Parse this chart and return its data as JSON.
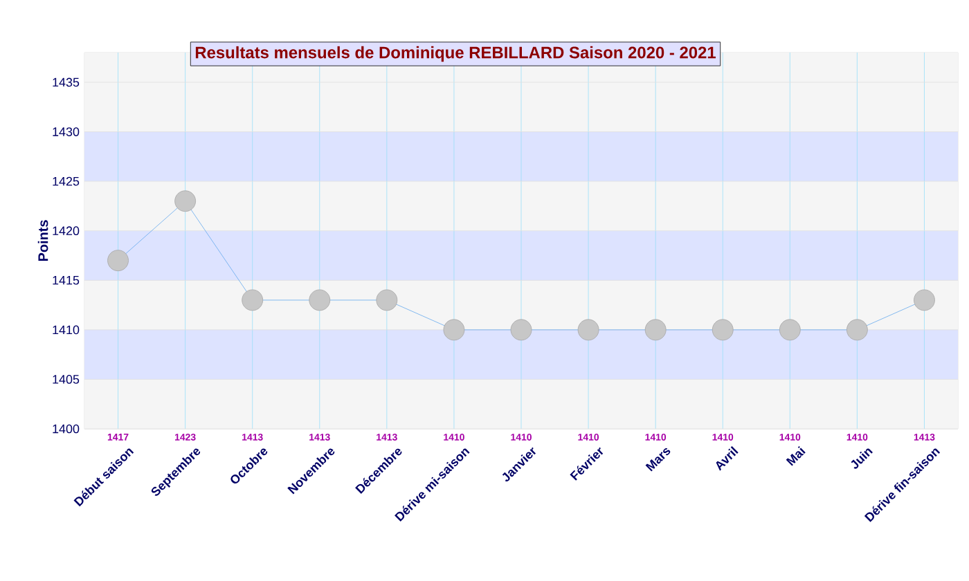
{
  "chart_data": {
    "type": "line",
    "title": "Resultats mensuels de Dominique REBILLARD Saison 2020 - 2021",
    "ylabel": "Points",
    "categories": [
      "Début saison",
      "Septembre",
      "Octobre",
      "Novembre",
      "Décembre",
      "Dérive mi-saison",
      "Janvier",
      "Février",
      "Mars",
      "Avril",
      "Mai",
      "Juin",
      "Dérive fin-saison"
    ],
    "values": [
      1417,
      1423,
      1413,
      1413,
      1413,
      1410,
      1410,
      1410,
      1410,
      1410,
      1410,
      1410,
      1413
    ],
    "color": "#66aaee",
    "marker": "circle",
    "data_labels": true,
    "grid": true,
    "bands": [
      {
        "axis": "y",
        "from": 1405,
        "to": 1410,
        "color": "#dde3ff"
      },
      {
        "axis": "y",
        "from": 1415,
        "to": 1420,
        "color": "#dde3ff"
      },
      {
        "axis": "y",
        "from": 1425,
        "to": 1430,
        "color": "#dde3ff"
      }
    ],
    "ylim": [
      1400,
      1438
    ],
    "yticks": [
      1400,
      1405,
      1410,
      1415,
      1420,
      1425,
      1430,
      1435
    ]
  }
}
